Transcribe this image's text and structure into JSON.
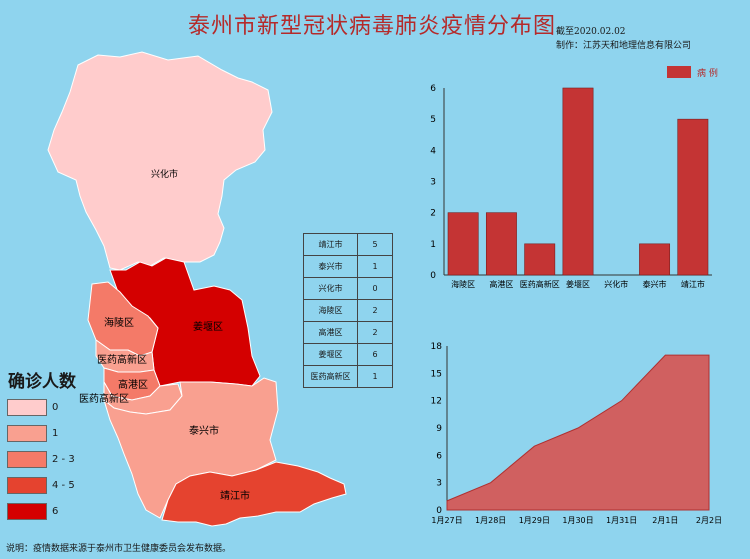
{
  "header": {
    "title": "泰州市新型冠状病毒肺炎疫情分布图",
    "date": "截至2020.02.02",
    "maker": "制作：江苏天和地理信息有限公司"
  },
  "map": {
    "labels": {
      "xinghua": "兴化市",
      "hailing": "海陵区",
      "jiangyan": "姜堰区",
      "yiyao1": "医药高新区",
      "gaogang": "高港区",
      "yiyao2": "医药高新区",
      "taixing": "泰兴市",
      "jingjiang": "靖江市"
    },
    "colors": {
      "0": "#ffcccc",
      "1": "#f9a090",
      "2-3": "#f47a68",
      "4-5": "#e5432f",
      "6": "#d40000"
    }
  },
  "legend": {
    "title": "确诊人数",
    "items": [
      {
        "label": "0",
        "color": "#ffcccc"
      },
      {
        "label": "1",
        "color": "#f9a090"
      },
      {
        "label": "2 - 3",
        "color": "#f47a68"
      },
      {
        "label": "4 - 5",
        "color": "#e5432f"
      },
      {
        "label": "6",
        "color": "#d40000"
      }
    ]
  },
  "table": {
    "rows": [
      {
        "name": "靖江市",
        "value": "5"
      },
      {
        "name": "泰兴市",
        "value": "1"
      },
      {
        "name": "兴化市",
        "value": "0"
      },
      {
        "name": "海陵区",
        "value": "2"
      },
      {
        "name": "高港区",
        "value": "2"
      },
      {
        "name": "姜堰区",
        "value": "6"
      },
      {
        "name": "医药高新区",
        "value": "1"
      }
    ]
  },
  "chart_data": [
    {
      "type": "bar",
      "categories": [
        "海陵区",
        "高港区",
        "医药高新区",
        "姜堰区",
        "兴化市",
        "泰兴市",
        "靖江市"
      ],
      "series": [
        {
          "name": "病 例",
          "values": [
            2,
            2,
            1,
            6,
            0,
            1,
            5
          ]
        }
      ],
      "ylim": [
        0,
        6
      ],
      "yticks": [
        "0",
        "1",
        "2",
        "3",
        "4",
        "5",
        "6"
      ],
      "color": "#c43434",
      "legend": "top-right"
    },
    {
      "type": "area",
      "categories": [
        "1月27日",
        "1月28日",
        "1月29日",
        "1月30日",
        "1月31日",
        "2月1日",
        "2月2日"
      ],
      "values": [
        1,
        3,
        7,
        9,
        12,
        17,
        17
      ],
      "ylim": [
        0,
        18
      ],
      "yticks": [
        "0",
        "3",
        "6",
        "9",
        "12",
        "15",
        "18"
      ],
      "color": "#d06060"
    }
  ],
  "footer": {
    "note": "说明：疫情数据来源于泰州市卫生健康委员会发布数据。"
  }
}
